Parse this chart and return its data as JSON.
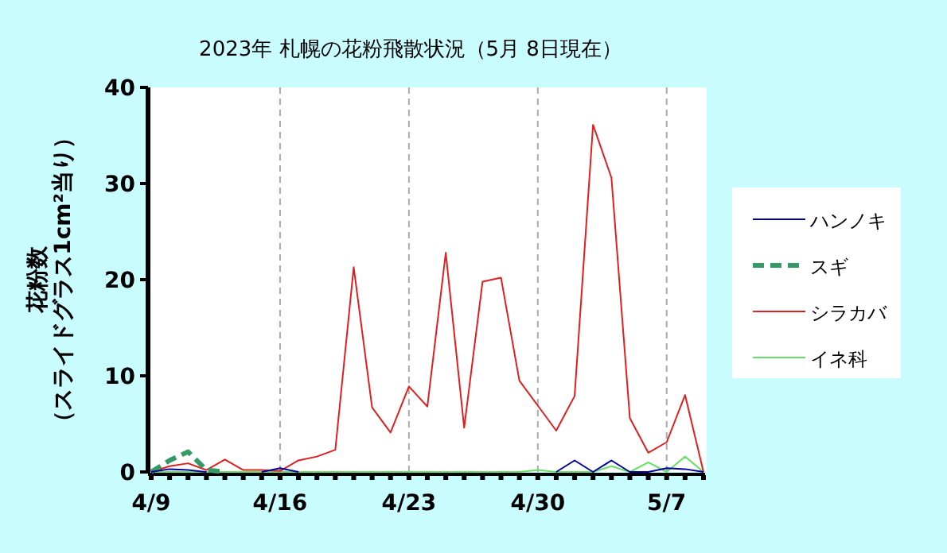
{
  "chart_data": {
    "type": "line",
    "title": "2023年 札幌の花粉飛散状況（5月 8日現在）",
    "ylabel": "花粉数（スライドグラス1cm²当り）",
    "categories": [
      "4/9",
      null,
      null,
      null,
      null,
      null,
      null,
      "4/16",
      null,
      null,
      null,
      null,
      null,
      null,
      "4/23",
      null,
      null,
      null,
      null,
      null,
      null,
      "4/30",
      null,
      null,
      null,
      null,
      null,
      null,
      "5/7",
      null,
      null
    ],
    "ylim": [
      0,
      40
    ],
    "yticks": [
      0,
      10,
      20,
      30,
      40
    ],
    "grid": "x",
    "legend": "right",
    "marker": "none",
    "series": [
      {
        "name": "ハンノキ",
        "color": "#0000a0",
        "line_style": "solid",
        "values": [
          0,
          0.3,
          0.2,
          0,
          null,
          null,
          0,
          0.4,
          0,
          null,
          null,
          null,
          null,
          null,
          null,
          null,
          null,
          null,
          null,
          null,
          null,
          null,
          0,
          1.2,
          0,
          1.2,
          0,
          0,
          0.4,
          0.3,
          0
        ]
      },
      {
        "name": "スギ",
        "color": "#339966",
        "line_style": "dashed",
        "values": [
          0,
          1.2,
          2.1,
          0.2,
          0,
          null,
          null,
          null,
          null,
          null,
          null,
          null,
          null,
          null,
          null,
          null,
          null,
          null,
          null,
          null,
          null,
          null,
          null,
          null,
          null,
          null,
          null,
          null,
          null,
          null,
          null
        ]
      },
      {
        "name": "シラカバ",
        "color": "#e02020",
        "line_style": "solid",
        "values": [
          0,
          0.6,
          0.9,
          0.2,
          1.3,
          0.2,
          0.2,
          0.1,
          1.2,
          1.6,
          2.3,
          21.3,
          6.7,
          4.1,
          8.9,
          6.8,
          22.8,
          4.6,
          19.8,
          20.2,
          9.5,
          6.9,
          4.3,
          7.9,
          36.1,
          30.6,
          5.6,
          2.0,
          3.1,
          8.0,
          0
        ]
      },
      {
        "name": "イネ科",
        "color": "#66e066",
        "line_style": "solid",
        "values": [
          0,
          0,
          0,
          0,
          0,
          0,
          0,
          0,
          0,
          0,
          0,
          0,
          0,
          0,
          0,
          0,
          0,
          0,
          0,
          0,
          0,
          0.2,
          0,
          0,
          0,
          0.6,
          0,
          1.0,
          0,
          1.6,
          0
        ]
      }
    ]
  }
}
